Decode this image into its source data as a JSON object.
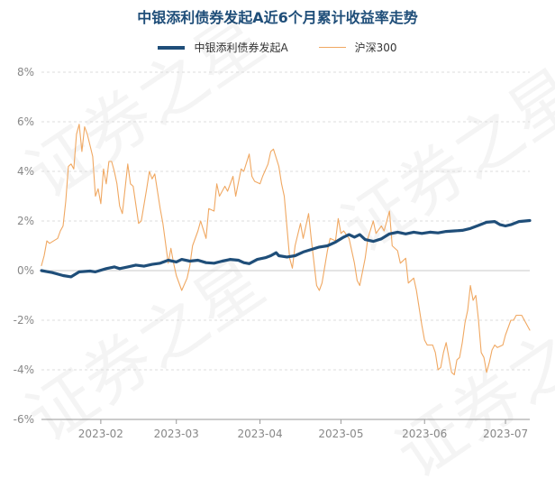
{
  "chart_data": {
    "type": "line",
    "title": "中银添利债券发起A近6个月累计收益率走势",
    "legend_position": "top-center",
    "grid": true,
    "ylim": [
      -6,
      8
    ],
    "yticks": [
      "8%",
      "6%",
      "4%",
      "2%",
      "0%",
      "-2%",
      "-4%",
      "-6%"
    ],
    "xticks": [
      "2023-02",
      "2023-03",
      "2023-04",
      "2023-05",
      "2023-06",
      "2023-07"
    ],
    "xrange": [
      "2023-01-10",
      "2023-07-10"
    ],
    "series": [
      {
        "name": "中银添利债券发起A",
        "color": "#1f4e79",
        "points": [
          [
            "2023-01-10",
            0.0
          ],
          [
            "2023-01-14",
            -0.08
          ],
          [
            "2023-01-18",
            -0.2
          ],
          [
            "2023-01-21",
            -0.25
          ],
          [
            "2023-01-24",
            -0.05
          ],
          [
            "2023-01-28",
            -0.02
          ],
          [
            "2023-01-30",
            -0.05
          ],
          [
            "2023-02-03",
            0.08
          ],
          [
            "2023-02-06",
            0.15
          ],
          [
            "2023-02-08",
            0.08
          ],
          [
            "2023-02-11",
            0.15
          ],
          [
            "2023-02-14",
            0.22
          ],
          [
            "2023-02-17",
            0.18
          ],
          [
            "2023-02-20",
            0.25
          ],
          [
            "2023-02-23",
            0.3
          ],
          [
            "2023-02-26",
            0.42
          ],
          [
            "2023-03-01",
            0.35
          ],
          [
            "2023-03-03",
            0.45
          ],
          [
            "2023-03-06",
            0.38
          ],
          [
            "2023-03-09",
            0.42
          ],
          [
            "2023-03-12",
            0.32
          ],
          [
            "2023-03-15",
            0.3
          ],
          [
            "2023-03-18",
            0.38
          ],
          [
            "2023-03-21",
            0.45
          ],
          [
            "2023-03-24",
            0.42
          ],
          [
            "2023-03-26",
            0.32
          ],
          [
            "2023-03-28",
            0.28
          ],
          [
            "2023-03-31",
            0.45
          ],
          [
            "2023-04-03",
            0.52
          ],
          [
            "2023-04-05",
            0.6
          ],
          [
            "2023-04-07",
            0.72
          ],
          [
            "2023-04-08",
            0.6
          ],
          [
            "2023-04-11",
            0.55
          ],
          [
            "2023-04-14",
            0.6
          ],
          [
            "2023-04-17",
            0.75
          ],
          [
            "2023-04-20",
            0.85
          ],
          [
            "2023-04-23",
            0.95
          ],
          [
            "2023-04-26",
            1.0
          ],
          [
            "2023-04-29",
            1.15
          ],
          [
            "2023-05-02",
            1.35
          ],
          [
            "2023-05-04",
            1.45
          ],
          [
            "2023-05-06",
            1.35
          ],
          [
            "2023-05-08",
            1.45
          ],
          [
            "2023-05-10",
            1.25
          ],
          [
            "2023-05-13",
            1.18
          ],
          [
            "2023-05-16",
            1.28
          ],
          [
            "2023-05-19",
            1.48
          ],
          [
            "2023-05-22",
            1.55
          ],
          [
            "2023-05-25",
            1.48
          ],
          [
            "2023-05-28",
            1.55
          ],
          [
            "2023-05-31",
            1.5
          ],
          [
            "2023-06-03",
            1.55
          ],
          [
            "2023-06-06",
            1.52
          ],
          [
            "2023-06-09",
            1.58
          ],
          [
            "2023-06-12",
            1.6
          ],
          [
            "2023-06-15",
            1.62
          ],
          [
            "2023-06-18",
            1.7
          ],
          [
            "2023-06-21",
            1.82
          ],
          [
            "2023-06-24",
            1.95
          ],
          [
            "2023-06-27",
            1.98
          ],
          [
            "2023-06-29",
            1.85
          ],
          [
            "2023-07-01",
            1.8
          ],
          [
            "2023-07-03",
            1.85
          ],
          [
            "2023-07-06",
            1.98
          ],
          [
            "2023-07-10",
            2.02
          ]
        ]
      },
      {
        "name": "沪深300",
        "color": "#f0a862",
        "points": [
          [
            "2023-01-10",
            0.2
          ],
          [
            "2023-01-11",
            0.6
          ],
          [
            "2023-01-12",
            1.2
          ],
          [
            "2023-01-13",
            1.1
          ],
          [
            "2023-01-16",
            1.3
          ],
          [
            "2023-01-17",
            1.6
          ],
          [
            "2023-01-18",
            1.8
          ],
          [
            "2023-01-19",
            2.8
          ],
          [
            "2023-01-20",
            4.2
          ],
          [
            "2023-01-21",
            4.3
          ],
          [
            "2023-01-22",
            4.1
          ],
          [
            "2023-01-23",
            5.5
          ],
          [
            "2023-01-24",
            5.9
          ],
          [
            "2023-01-25",
            4.8
          ],
          [
            "2023-01-26",
            5.8
          ],
          [
            "2023-01-27",
            5.5
          ],
          [
            "2023-01-29",
            4.6
          ],
          [
            "2023-01-30",
            3.0
          ],
          [
            "2023-01-31",
            3.3
          ],
          [
            "2023-02-01",
            2.7
          ],
          [
            "2023-02-02",
            4.1
          ],
          [
            "2023-02-03",
            3.5
          ],
          [
            "2023-02-04",
            4.4
          ],
          [
            "2023-02-05",
            4.4
          ],
          [
            "2023-02-06",
            4.0
          ],
          [
            "2023-02-07",
            3.5
          ],
          [
            "2023-02-08",
            2.6
          ],
          [
            "2023-02-09",
            2.3
          ],
          [
            "2023-02-11",
            4.3
          ],
          [
            "2023-02-12",
            3.5
          ],
          [
            "2023-02-13",
            3.4
          ],
          [
            "2023-02-15",
            1.9
          ],
          [
            "2023-02-16",
            2.0
          ],
          [
            "2023-02-18",
            3.3
          ],
          [
            "2023-02-19",
            4.0
          ],
          [
            "2023-02-20",
            3.7
          ],
          [
            "2023-02-21",
            3.9
          ],
          [
            "2023-02-23",
            2.5
          ],
          [
            "2023-02-24",
            1.9
          ],
          [
            "2023-02-26",
            0.3
          ],
          [
            "2023-02-27",
            0.9
          ],
          [
            "2023-02-28",
            0.3
          ],
          [
            "2023-03-01",
            -0.2
          ],
          [
            "2023-03-03",
            -0.8
          ],
          [
            "2023-03-05",
            -0.3
          ],
          [
            "2023-03-06",
            0.2
          ],
          [
            "2023-03-07",
            1.0
          ],
          [
            "2023-03-09",
            1.6
          ],
          [
            "2023-03-10",
            2.0
          ],
          [
            "2023-03-12",
            1.3
          ],
          [
            "2023-03-13",
            2.5
          ],
          [
            "2023-03-15",
            2.4
          ],
          [
            "2023-03-16",
            3.5
          ],
          [
            "2023-03-17",
            3.0
          ],
          [
            "2023-03-19",
            3.4
          ],
          [
            "2023-03-20",
            3.2
          ],
          [
            "2023-03-22",
            3.8
          ],
          [
            "2023-03-23",
            3.0
          ],
          [
            "2023-03-25",
            4.1
          ],
          [
            "2023-03-26",
            4.0
          ],
          [
            "2023-03-28",
            4.7
          ],
          [
            "2023-03-29",
            3.8
          ],
          [
            "2023-03-30",
            3.6
          ],
          [
            "2023-04-01",
            3.5
          ],
          [
            "2023-04-02",
            3.8
          ],
          [
            "2023-04-04",
            4.3
          ],
          [
            "2023-04-05",
            4.8
          ],
          [
            "2023-04-06",
            4.9
          ],
          [
            "2023-04-08",
            4.2
          ],
          [
            "2023-04-09",
            3.5
          ],
          [
            "2023-04-10",
            3.0
          ],
          [
            "2023-04-12",
            0.5
          ],
          [
            "2023-04-13",
            0.1
          ],
          [
            "2023-04-14",
            1.0
          ],
          [
            "2023-04-16",
            1.9
          ],
          [
            "2023-04-17",
            1.3
          ],
          [
            "2023-04-19",
            2.3
          ],
          [
            "2023-04-20",
            1.3
          ],
          [
            "2023-04-22",
            -0.6
          ],
          [
            "2023-04-23",
            -0.8
          ],
          [
            "2023-04-24",
            -0.5
          ],
          [
            "2023-04-26",
            0.8
          ],
          [
            "2023-04-27",
            1.3
          ],
          [
            "2023-04-29",
            1.2
          ],
          [
            "2023-04-30",
            2.1
          ],
          [
            "2023-05-01",
            1.5
          ],
          [
            "2023-05-02",
            1.6
          ],
          [
            "2023-05-04",
            1.3
          ],
          [
            "2023-05-06",
            0.3
          ],
          [
            "2023-05-07",
            -0.4
          ],
          [
            "2023-05-08",
            -0.6
          ],
          [
            "2023-05-10",
            0.5
          ],
          [
            "2023-05-11",
            1.3
          ],
          [
            "2023-05-13",
            2.0
          ],
          [
            "2023-05-14",
            1.5
          ],
          [
            "2023-05-16",
            1.8
          ],
          [
            "2023-05-17",
            1.6
          ],
          [
            "2023-05-19",
            2.4
          ],
          [
            "2023-05-20",
            1.0
          ],
          [
            "2023-05-22",
            0.8
          ],
          [
            "2023-05-23",
            0.3
          ],
          [
            "2023-05-25",
            0.5
          ],
          [
            "2023-05-26",
            -0.5
          ],
          [
            "2023-05-28",
            -0.3
          ],
          [
            "2023-05-29",
            -0.8
          ],
          [
            "2023-05-31",
            -2.2
          ],
          [
            "2023-06-01",
            -2.8
          ],
          [
            "2023-06-02",
            -3.0
          ],
          [
            "2023-06-04",
            -3.0
          ],
          [
            "2023-06-05",
            -3.3
          ],
          [
            "2023-06-06",
            -4.0
          ],
          [
            "2023-06-07",
            -3.9
          ],
          [
            "2023-06-08",
            -3.3
          ],
          [
            "2023-06-09",
            -2.9
          ],
          [
            "2023-06-10",
            -3.5
          ],
          [
            "2023-06-11",
            -4.1
          ],
          [
            "2023-06-12",
            -4.2
          ],
          [
            "2023-06-13",
            -3.6
          ],
          [
            "2023-06-14",
            -3.5
          ],
          [
            "2023-06-15",
            -2.9
          ],
          [
            "2023-06-16",
            -2.1
          ],
          [
            "2023-06-17",
            -1.6
          ],
          [
            "2023-06-18",
            -0.6
          ],
          [
            "2023-06-19",
            -1.2
          ],
          [
            "2023-06-20",
            -1.0
          ],
          [
            "2023-06-21",
            -2.0
          ],
          [
            "2023-06-22",
            -3.3
          ],
          [
            "2023-06-23",
            -3.5
          ],
          [
            "2023-06-24",
            -4.1
          ],
          [
            "2023-06-25",
            -3.7
          ],
          [
            "2023-06-26",
            -3.2
          ],
          [
            "2023-06-27",
            -3.0
          ],
          [
            "2023-06-28",
            -3.1
          ],
          [
            "2023-06-30",
            -3.0
          ],
          [
            "2023-07-01",
            -2.6
          ],
          [
            "2023-07-03",
            -2.0
          ],
          [
            "2023-07-04",
            -2.0
          ],
          [
            "2023-07-05",
            -1.8
          ],
          [
            "2023-07-07",
            -1.8
          ],
          [
            "2023-07-10",
            -2.4
          ]
        ]
      }
    ]
  },
  "watermark_text": "证券之星"
}
